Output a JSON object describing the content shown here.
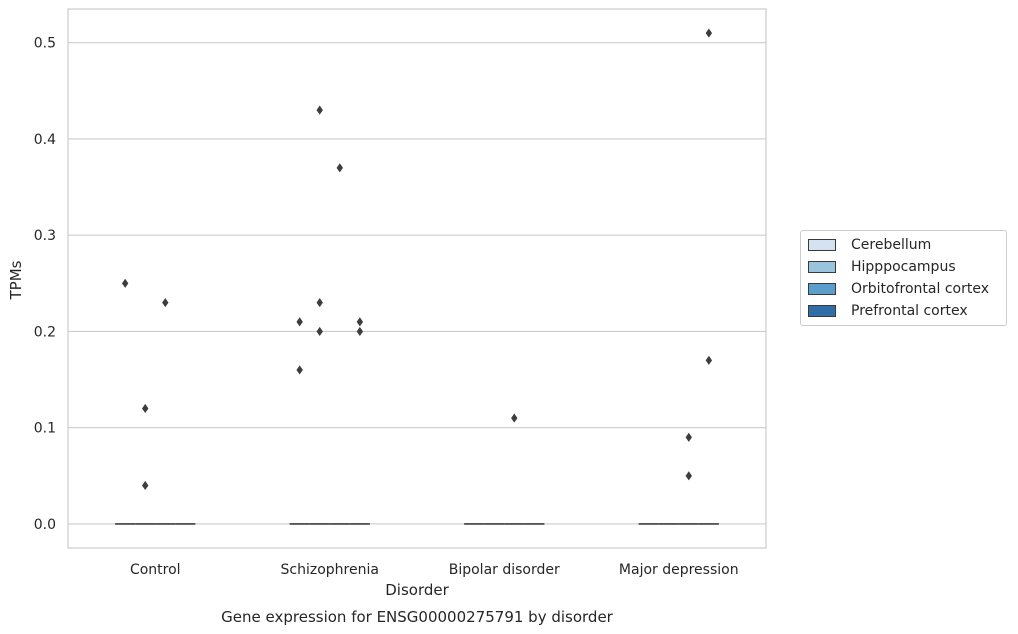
{
  "chart_data": {
    "type": "boxplot",
    "title": "Gene expression for ENSG00000275791 by disorder",
    "xlabel": "Disorder",
    "ylabel": "TPMs",
    "categories": [
      "Control",
      "Schizophrenia",
      "Bipolar disorder",
      "Major depression"
    ],
    "ylim": [
      -0.025,
      0.535
    ],
    "yticks": [
      0.0,
      0.1,
      0.2,
      0.3,
      0.4,
      0.5
    ],
    "ytick_labels": [
      "0.0",
      "0.1",
      "0.2",
      "0.3",
      "0.4",
      "0.5"
    ],
    "grid": true,
    "legend_placement": "right",
    "series": [
      {
        "name": "Cerebellum",
        "color": "#d3e3f2",
        "medians": [
          0.0,
          0.0,
          0.0,
          0.0
        ],
        "outliers": [
          [
            0.25
          ],
          [
            0.21,
            0.16
          ],
          [],
          []
        ]
      },
      {
        "name": "Hipppocampus",
        "color": "#9ac3de",
        "medians": [
          0.0,
          0.0,
          0.0,
          0.0
        ],
        "outliers": [
          [
            0.12,
            0.04
          ],
          [
            0.43,
            0.23,
            0.2
          ],
          [],
          []
        ]
      },
      {
        "name": "Orbitofrontal cortex",
        "color": "#5b9dcb",
        "medians": [
          0.0,
          0.0,
          0.0,
          0.0
        ],
        "outliers": [
          [
            0.23
          ],
          [
            0.37
          ],
          [
            0.11
          ],
          [
            0.09,
            0.05
          ]
        ]
      },
      {
        "name": "Prefrontal cortex",
        "color": "#2f6ea7",
        "medians": [
          0.0,
          0.0,
          0.0,
          0.0
        ],
        "outliers": [
          [],
          [
            0.21,
            0.2
          ],
          [],
          [
            0.51,
            0.17
          ]
        ]
      }
    ]
  }
}
